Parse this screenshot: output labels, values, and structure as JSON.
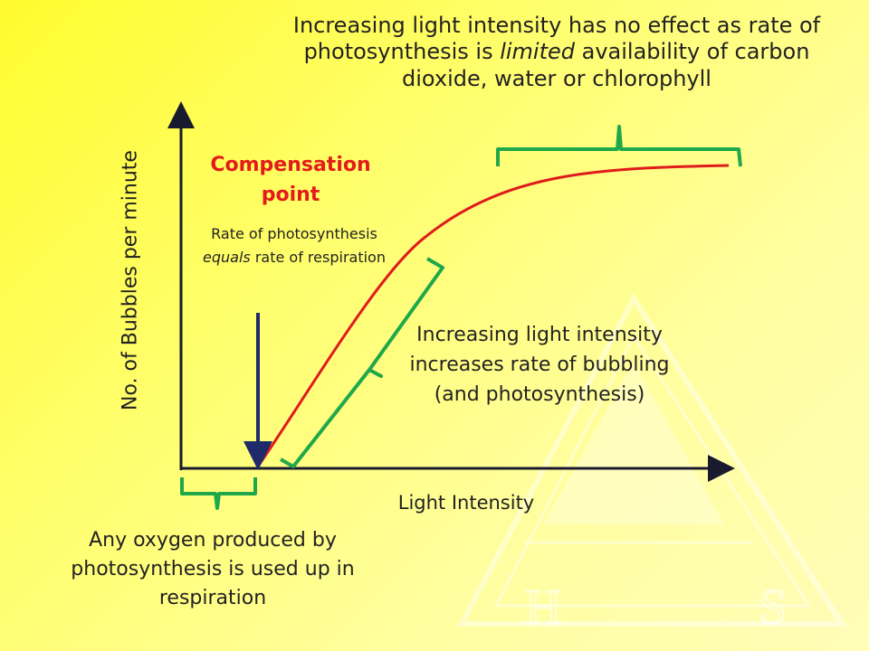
{
  "diagram": {
    "axes": {
      "y_label": "No. of Bubbles per minute",
      "x_label": "Light Intensity"
    },
    "annotations": {
      "plateau": {
        "pre": "Increasing light intensity has no effect as rate of photosynthesis is ",
        "emphasis": "limited",
        "post": " availability of carbon dioxide, water or chlorophyll"
      },
      "compensation_title": "Compensation point",
      "compensation_desc": {
        "line1": "Rate of photosynthesis",
        "emphasis": "equals",
        "post": " rate of respiration"
      },
      "increasing": "Increasing light intensity increases rate of bubbling (and photosynthesis)",
      "below_compensation": "Any oxygen produced by photosynthesis is used up in respiration"
    },
    "colors": {
      "curve": "#e01b1b",
      "brackets": "#1fa84a",
      "arrow": "#1f2a6b",
      "axes": "#1a1a2e",
      "highlight_text": "#e41b1b",
      "watermark": "#ffffff"
    },
    "watermark": {
      "letters": [
        "H",
        "S"
      ]
    }
  }
}
